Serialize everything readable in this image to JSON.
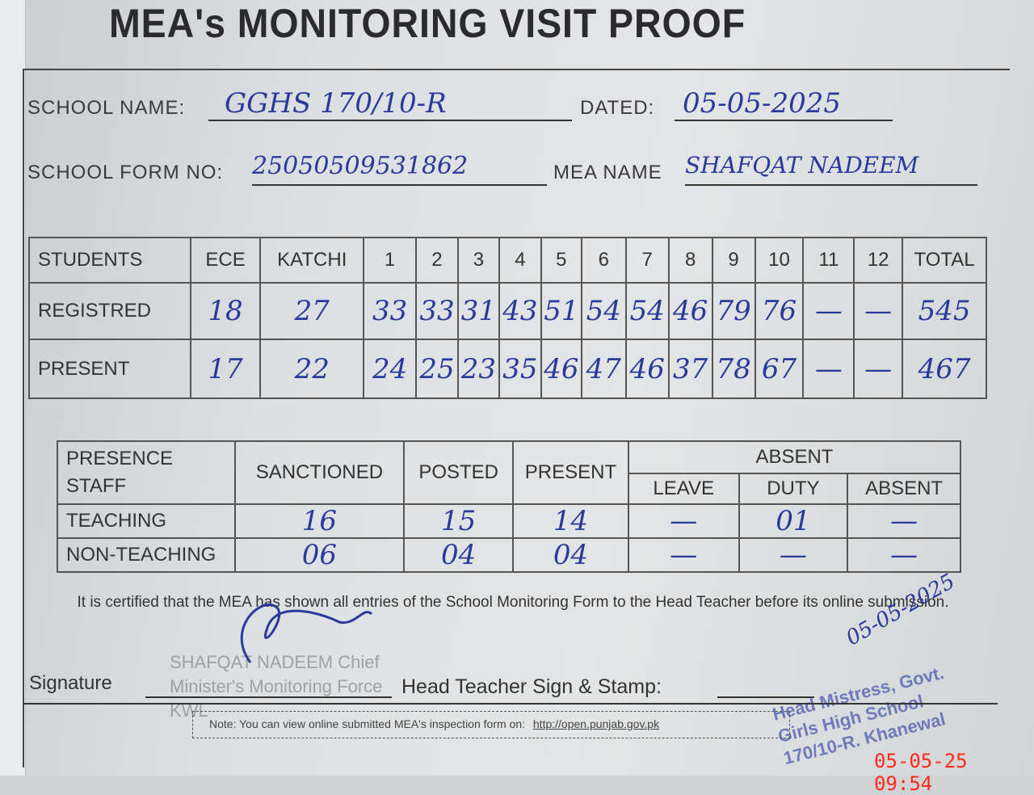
{
  "title": "MEA's MONITORING VISIT PROOF",
  "fields": {
    "school_name_label": "SCHOOL NAME:",
    "school_name": "GGHS 170/10-R",
    "dated_label": "DATED:",
    "dated": "05-05-2025",
    "form_no_label": "SCHOOL FORM NO:",
    "form_no": "25050509531862",
    "mea_name_label": "MEA NAME",
    "mea_name": "SHAFQAT NADEEM"
  },
  "students": {
    "headers": [
      "STUDENTS",
      "ECE",
      "KATCHI",
      "1",
      "2",
      "3",
      "4",
      "5",
      "6",
      "7",
      "8",
      "9",
      "10",
      "11",
      "12",
      "TOTAL"
    ],
    "rows": [
      {
        "label": "REGISTRED",
        "values": [
          "18",
          "27",
          "33",
          "33",
          "31",
          "43",
          "51",
          "54",
          "54",
          "46",
          "79",
          "76",
          "—",
          "—",
          "545"
        ]
      },
      {
        "label": "PRESENT",
        "values": [
          "17",
          "22",
          "24",
          "25",
          "23",
          "35",
          "46",
          "47",
          "46",
          "37",
          "78",
          "67",
          "—",
          "—",
          "467"
        ]
      }
    ]
  },
  "staff": {
    "header_label": "PRESENCE STAFF",
    "sanctioned": "SANCTIONED",
    "posted": "POSTED",
    "present": "PRESENT",
    "absent": "ABSENT",
    "leave": "LEAVE",
    "duty": "DUTY",
    "absent_sub": "ABSENT",
    "rows": [
      {
        "label": "TEACHING",
        "values": [
          "16",
          "15",
          "14",
          "—",
          "01",
          "—"
        ]
      },
      {
        "label": "NON-TEACHING",
        "values": [
          "06",
          "04",
          "04",
          "—",
          "—",
          "—"
        ]
      }
    ]
  },
  "certification": "It is certified that the MEA has shown all entries of the School Monitoring Form to the Head Teacher before its online submission.",
  "signature_label": "Signature",
  "head_teacher_label": "Head Teacher Sign & Stamp:",
  "mea_stamp": "SHAFQAT NADEEM Chief Minister's Monitoring Force KWL",
  "head_stamp": "Head Mistress, Govt. Girls High School 170/10-R. Khanewal",
  "head_sign_date": "05-05-2025",
  "note": "Note: You can view online submitted MEA's inspection form on:",
  "note_link": "http://open.punjab.gov.pk",
  "timestamp": "05-05-25  09:54",
  "colors": {
    "ink": "#2a3a9c",
    "timestamp": "#ff2a1a"
  }
}
